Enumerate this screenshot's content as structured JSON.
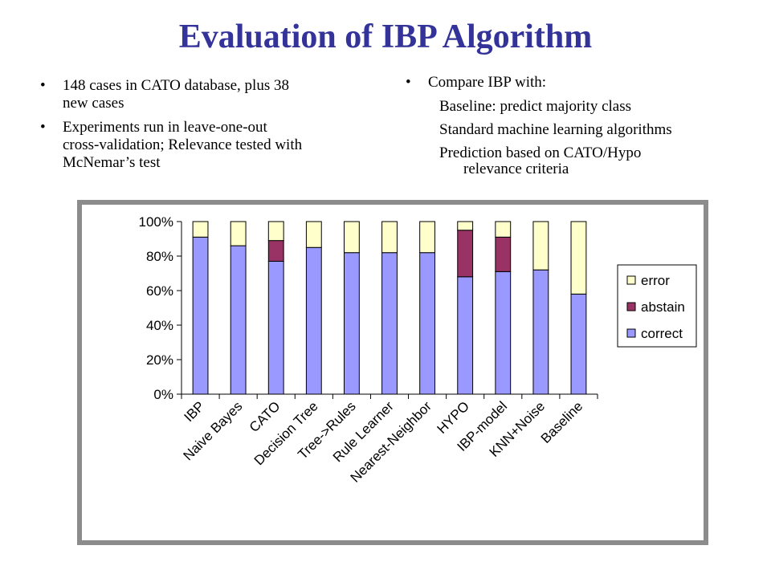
{
  "slide": {
    "title": "Evaluation of IBP Algorithm",
    "bullet_glyph": "•",
    "left_bullets": [
      {
        "line1": "148 cases in CATO database, plus 38",
        "line2": "new cases"
      },
      {
        "line1": "Experiments run in leave-one-out",
        "line2": "cross-validation; Relevance tested with",
        "line3": "McNemar’s test"
      }
    ],
    "right_bullet": "Compare IBP with:",
    "right_subitems": [
      {
        "line1": "Baseline: predict majority class"
      },
      {
        "line1": "Standard machine learning algorithms"
      },
      {
        "line1": "Prediction based on CATO/Hypo",
        "line2": "relevance criteria"
      }
    ]
  },
  "chart_data": {
    "type": "bar",
    "stacked": true,
    "percent_stacked": true,
    "categories": [
      "IBP",
      "Naive Bayes",
      "CATO",
      "Decision Tree",
      "Tree->Rules",
      "Rule Learner",
      "Nearest-Neighbor",
      "HYPO",
      "IBP-model",
      "KNN+Noise",
      "Baseline"
    ],
    "series": [
      {
        "name": "correct",
        "color": "#9999ff",
        "values": [
          91,
          86,
          77,
          85,
          82,
          82,
          82,
          68,
          71,
          72,
          58
        ]
      },
      {
        "name": "abstain",
        "color": "#993366",
        "values": [
          0,
          0,
          12,
          0,
          0,
          0,
          0,
          27,
          20,
          0,
          0
        ]
      },
      {
        "name": "error",
        "color": "#ffffcc",
        "values": [
          9,
          14,
          11,
          15,
          18,
          18,
          18,
          5,
          9,
          28,
          42
        ]
      }
    ],
    "legend_order": [
      "error",
      "abstain",
      "correct"
    ],
    "legend_position": "right",
    "ylim": [
      0,
      100
    ],
    "yticks": [
      "0%",
      "20%",
      "40%",
      "60%",
      "80%",
      "100%"
    ],
    "xlabel": "",
    "ylabel": "",
    "grid": false
  }
}
